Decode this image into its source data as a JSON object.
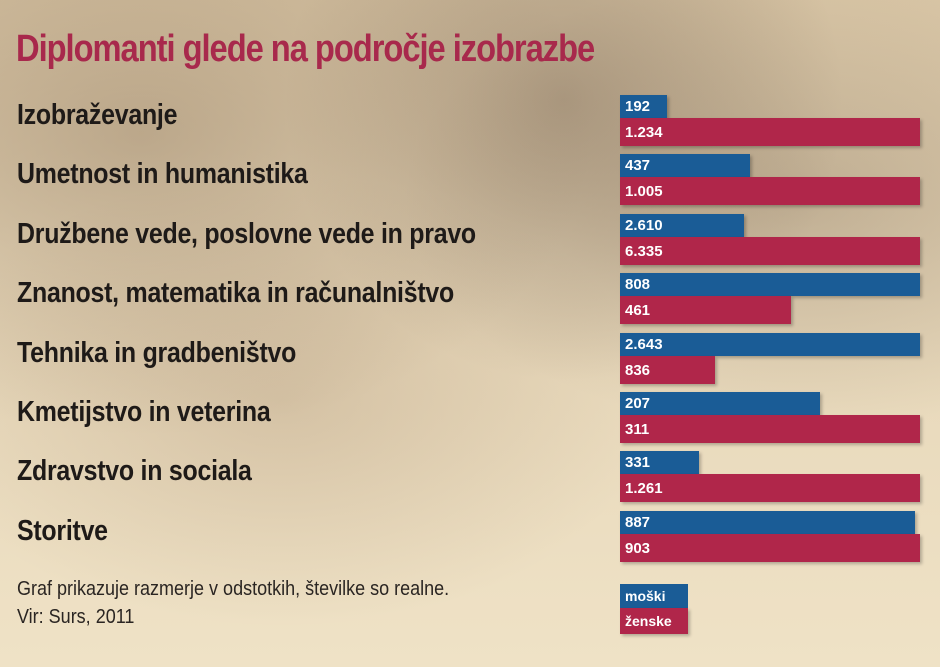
{
  "chart_data": {
    "type": "bar",
    "orientation": "horizontal",
    "title": "Diplomanti glede na področje izobrazbe",
    "categories": [
      "Izobraževanje",
      "Umetnost in humanistika",
      "Družbene vede, poslovne vede in pravo",
      "Znanost, matematika in računalništvo",
      "Tehnika in gradbeništvo",
      "Kmetijstvo in veterina",
      "Zdravstvo in sociala",
      "Storitve"
    ],
    "series": [
      {
        "name": "moški",
        "color": "#1a5c96",
        "values": [
          192,
          437,
          2610,
          808,
          2643,
          207,
          331,
          887
        ],
        "labels": [
          "192",
          "437",
          "2.610",
          "808",
          "2.643",
          "207",
          "331",
          "887"
        ]
      },
      {
        "name": "ženske",
        "color": "#b0264a",
        "values": [
          1234,
          1005,
          6335,
          461,
          836,
          311,
          1261,
          903
        ],
        "labels": [
          "1.234",
          "1.005",
          "6.335",
          "461",
          "836",
          "311",
          "1.261",
          "903"
        ]
      }
    ],
    "scaling": "each pair relative to its larger value",
    "legend": "bottom-right",
    "grid": false,
    "note": "Graf prikazuje razmerje v odstotkih, številke so realne.",
    "source": "Vir: Surs, 2011"
  },
  "colors": {
    "title": "#a8294c"
  }
}
